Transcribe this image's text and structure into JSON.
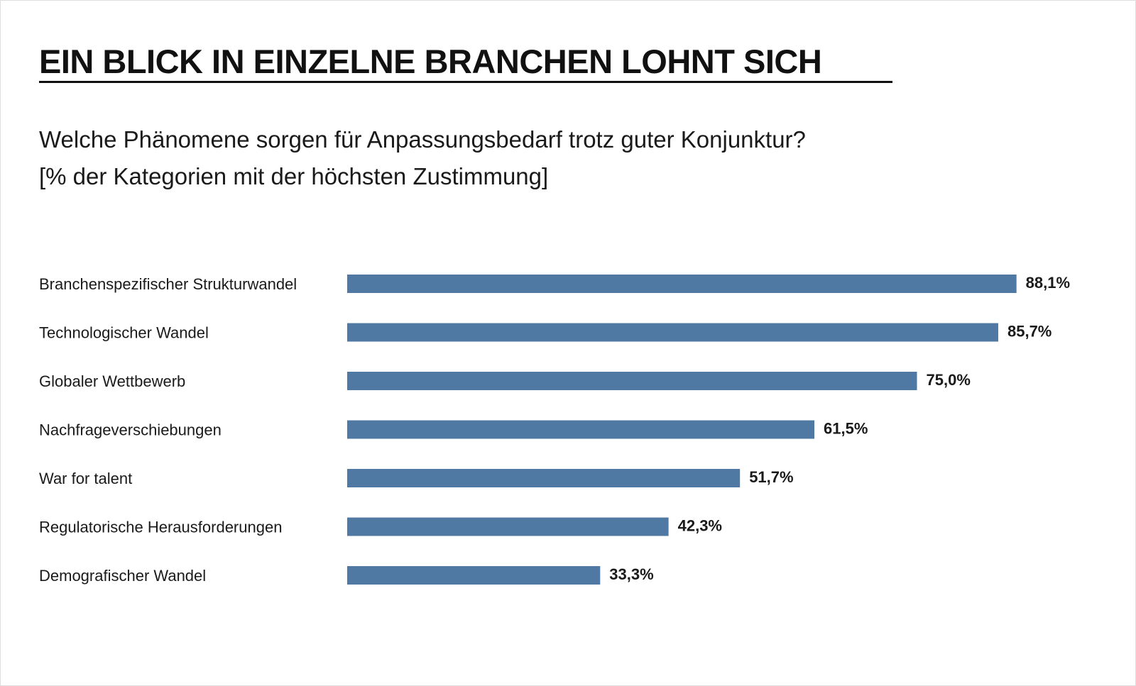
{
  "title": "EIN BLICK IN EINZELNE BRANCHEN LOHNT SICH",
  "subtitle": {
    "line1": "Welche Phänomene sorgen für Anpassungsbedarf trotz guter Konjunktur?",
    "line2": "[% der Kategorien mit der höchsten Zustimmung]"
  },
  "colors": {
    "bar": "#4f79a3",
    "text": "#1a1a1a"
  },
  "chart_data": {
    "type": "bar",
    "orientation": "horizontal",
    "categories": [
      "Branchenspezifischer Strukturwandel",
      "Technologischer Wandel",
      "Globaler Wettbewerb",
      "Nachfrageverschiebungen",
      "War for talent",
      "Regulatorische Herausforderungen",
      "Demografischer Wandel"
    ],
    "values": [
      88.1,
      85.7,
      75.0,
      61.5,
      51.7,
      42.3,
      33.3
    ],
    "value_labels": [
      "88,1%",
      "85,7%",
      "75,0%",
      "61,5%",
      "51,7%",
      "42,3%",
      "33,3%"
    ],
    "title": "EIN BLICK IN EINZELNE BRANCHEN LOHNT SICH",
    "subtitle": "Welche Phänomene sorgen für Anpassungsbedarf trotz guter Konjunktur? [% der Kategorien mit der höchsten Zustimmung]",
    "xlabel": "",
    "ylabel": "",
    "xlim": [
      0,
      100
    ],
    "grid": false,
    "legend": "none"
  }
}
